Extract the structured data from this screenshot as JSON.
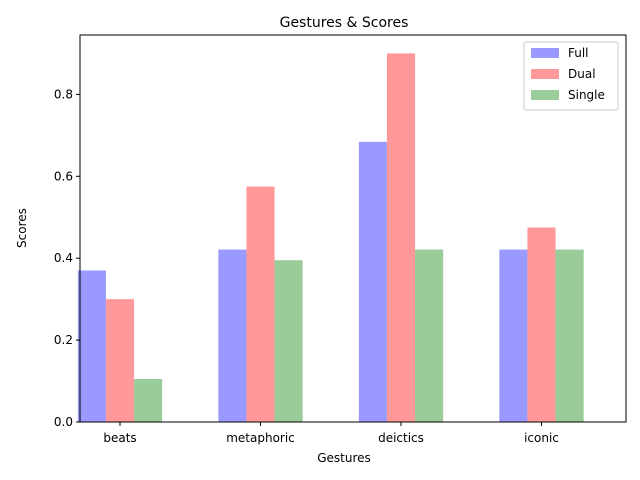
{
  "chart_data": {
    "type": "bar",
    "title": "Gestures & Scores",
    "xlabel": "Gestures",
    "ylabel": "Scores",
    "categories": [
      "beats",
      "metaphoric",
      "deictics",
      "iconic"
    ],
    "series": [
      {
        "name": "Full",
        "color": "#9999ff",
        "values": [
          0.37,
          0.421,
          0.684,
          0.421
        ]
      },
      {
        "name": "Dual",
        "color": "#ff9999",
        "values": [
          0.3,
          0.575,
          0.9,
          0.475
        ]
      },
      {
        "name": "Single",
        "color": "#99cc99",
        "values": [
          0.105,
          0.395,
          0.421,
          0.421
        ]
      }
    ],
    "ylim": [
      0,
      0.945
    ],
    "yticks": [
      "0.0",
      "0.2",
      "0.4",
      "0.6",
      "0.8"
    ],
    "grid": false,
    "legend_position": "top-right"
  }
}
